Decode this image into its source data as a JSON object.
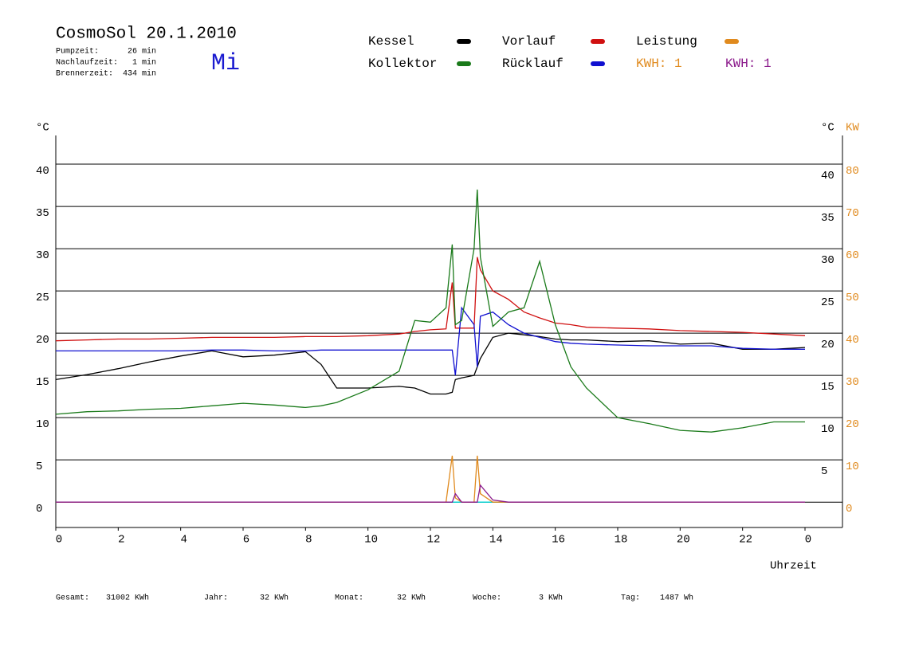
{
  "chart_data": {
    "type": "line",
    "title": "CosmoSol 20.1.2010",
    "info": [
      "Pumpzeit:      26 min",
      "Nachlaufzeit:   1 min",
      "Brennerzeit:  434 min"
    ],
    "weekday": "Mi",
    "y_label": "°C",
    "y2_label_c": "°C",
    "y2_label": "KW",
    "x_label": "Uhrzeit",
    "kwh_labels": [
      {
        "text": "KWH: 1",
        "color": "#e08a1e"
      },
      {
        "text": "KWH: 1",
        "color": "#8b1a8b"
      }
    ],
    "footer": [
      [
        "Gesamt:",
        "31002 KWh"
      ],
      [
        "Jahr:",
        "32 KWh"
      ],
      [
        "Monat:",
        "32 KWh"
      ],
      [
        "Woche:",
        "3 KWh"
      ],
      [
        "Tag:",
        "1487 Wh"
      ]
    ],
    "x": [
      0,
      1,
      2,
      3,
      4,
      5,
      6,
      7,
      8,
      8.5,
      9,
      10,
      11,
      11.5,
      12,
      12.5,
      12.7,
      12.8,
      13,
      13.4,
      13.5,
      13.6,
      14,
      14.5,
      15,
      15.5,
      16,
      16.5,
      17,
      18,
      19,
      20,
      21,
      22,
      23,
      24
    ],
    "xlim": [
      0,
      25.2
    ],
    "xticks": [
      0,
      2,
      4,
      6,
      8,
      10,
      12,
      14,
      16,
      18,
      20,
      22,
      {
        "value": 24,
        "label": "0"
      }
    ],
    "ylim": [
      -3,
      43.4
    ],
    "yticks": [
      0,
      5,
      10,
      15,
      20,
      25,
      30,
      35,
      40
    ],
    "y2lim": [
      -6,
      86.8
    ],
    "y2ticks": [
      0,
      10,
      20,
      30,
      40,
      50,
      60,
      70,
      80
    ],
    "grid": true,
    "series": [
      {
        "name": "Kessel",
        "color": "#000000",
        "values": [
          14.5,
          15.1,
          15.8,
          16.6,
          17.3,
          17.9,
          17.2,
          17.4,
          17.8,
          16.3,
          13.5,
          13.5,
          13.7,
          13.5,
          12.8,
          12.8,
          13,
          14.5,
          14.7,
          15,
          16,
          17,
          19.5,
          20,
          19.8,
          19.6,
          19.3,
          19.2,
          19.2,
          19,
          19.1,
          18.7,
          18.8,
          18.1,
          18.1,
          18.3
        ]
      },
      {
        "name": "Kollektor",
        "color": "#1a7a1a",
        "values": [
          10.4,
          10.7,
          10.8,
          11,
          11.1,
          11.4,
          11.7,
          11.5,
          11.2,
          11.4,
          11.8,
          13.3,
          15.5,
          21.5,
          21.3,
          23,
          30.5,
          21,
          21.5,
          30,
          37,
          29,
          20.8,
          22.5,
          23,
          28.5,
          21,
          16,
          13.5,
          10,
          9.3,
          8.5,
          8.3,
          8.8,
          9.5,
          9.5
        ]
      },
      {
        "name": "Vorlauf",
        "color": "#d01010",
        "values": [
          19.1,
          19.2,
          19.3,
          19.3,
          19.4,
          19.5,
          19.5,
          19.5,
          19.6,
          19.6,
          19.6,
          19.7,
          19.9,
          20.2,
          20.4,
          20.5,
          26,
          20.6,
          20.6,
          20.6,
          29,
          27.5,
          25,
          24,
          22.5,
          21.8,
          21.2,
          21,
          20.7,
          20.6,
          20.5,
          20.3,
          20.2,
          20.1,
          19.9,
          19.7
        ]
      },
      {
        "name": "Rücklauf",
        "color": "#1010d0",
        "values": [
          17.9,
          17.9,
          17.9,
          17.9,
          17.9,
          18,
          18,
          17.9,
          17.9,
          18,
          18,
          18,
          18,
          18,
          18,
          18,
          18,
          15,
          23,
          21,
          16,
          22,
          22.5,
          21,
          20,
          19.5,
          19,
          18.8,
          18.7,
          18.6,
          18.5,
          18.5,
          18.5,
          18.2,
          18.1,
          18.1
        ]
      },
      {
        "name": "Leistung",
        "color": "#e08a1e",
        "axis": "y2",
        "values": [
          0,
          0,
          0,
          0,
          0,
          0,
          0,
          0,
          0,
          0,
          0,
          0,
          0,
          0,
          0,
          0,
          11,
          1,
          0,
          0,
          11,
          2,
          0,
          0,
          0,
          0,
          0,
          0,
          0,
          0,
          0,
          0,
          0,
          0,
          0,
          0
        ]
      },
      {
        "color": "#8b1a8b",
        "axis": "y2",
        "values": [
          0,
          0,
          0,
          0,
          0,
          0,
          0,
          0,
          0,
          0,
          0,
          0,
          0,
          0,
          0,
          0,
          0,
          2,
          0,
          0,
          0,
          4,
          0.5,
          0,
          0,
          0,
          0,
          0,
          0,
          0,
          0,
          0,
          0,
          0,
          0,
          0
        ]
      },
      {
        "color": "#00d8d8",
        "values": [
          0,
          0,
          0,
          0,
          0,
          0,
          0,
          0,
          0,
          0,
          0,
          0,
          0,
          0,
          0,
          0,
          0,
          0,
          0,
          0,
          0,
          0,
          0,
          0,
          0,
          0,
          0,
          0,
          0,
          0,
          0,
          0,
          0,
          0,
          0,
          0
        ]
      }
    ]
  }
}
